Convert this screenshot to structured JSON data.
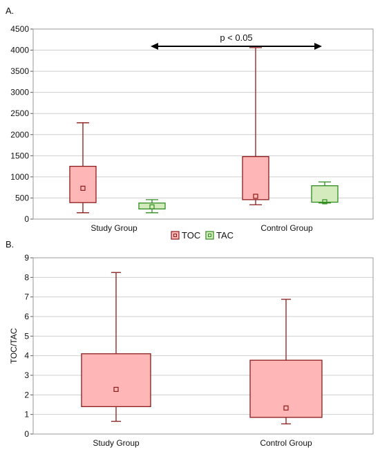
{
  "chart_data": [
    {
      "type": "box",
      "panel_label": "A.",
      "categories": [
        "Study Group",
        "Control Group"
      ],
      "ylim": [
        0,
        4500
      ],
      "yticks": [
        0,
        500,
        1000,
        1500,
        2000,
        2500,
        3000,
        3500,
        4000,
        4500
      ],
      "grid": true,
      "legend_position": "bottom-center",
      "series": [
        {
          "name": "TOC",
          "color": "#ffb6b6",
          "edge_color": "#8b1a1a",
          "boxes": [
            {
              "min": 150,
              "q1": 390,
              "q3": 1250,
              "max": 2280,
              "mean": 730
            },
            {
              "min": 340,
              "q1": 460,
              "q3": 1480,
              "max": 4060,
              "mean": 540
            }
          ]
        },
        {
          "name": "TAC",
          "color": "#d4ecbd",
          "edge_color": "#2e8b1e",
          "boxes": [
            {
              "min": 150,
              "q1": 240,
              "q3": 380,
              "max": 460,
              "mean": 290
            },
            {
              "min": 380,
              "q1": 400,
              "q3": 790,
              "max": 880,
              "mean": 410
            }
          ]
        }
      ],
      "annotation": {
        "text": "p < 0.05",
        "from": "Study Group TAC",
        "to": "Control Group TAC"
      }
    },
    {
      "type": "box",
      "panel_label": "B.",
      "categories": [
        "Study Group",
        "Control Group"
      ],
      "ylabel": "TOC/TAC",
      "ylim": [
        0,
        9
      ],
      "yticks": [
        0,
        1,
        2,
        3,
        4,
        5,
        6,
        7,
        8,
        9
      ],
      "grid": true,
      "series": [
        {
          "color": "#ffb6b6",
          "edge_color": "#8b1a1a",
          "boxes": [
            {
              "min": 0.65,
              "q1": 1.4,
              "q3": 4.1,
              "max": 8.25,
              "mean": 2.28
            },
            {
              "min": 0.52,
              "q1": 0.85,
              "q3": 3.77,
              "max": 6.88,
              "mean": 1.33
            }
          ]
        }
      ]
    }
  ]
}
